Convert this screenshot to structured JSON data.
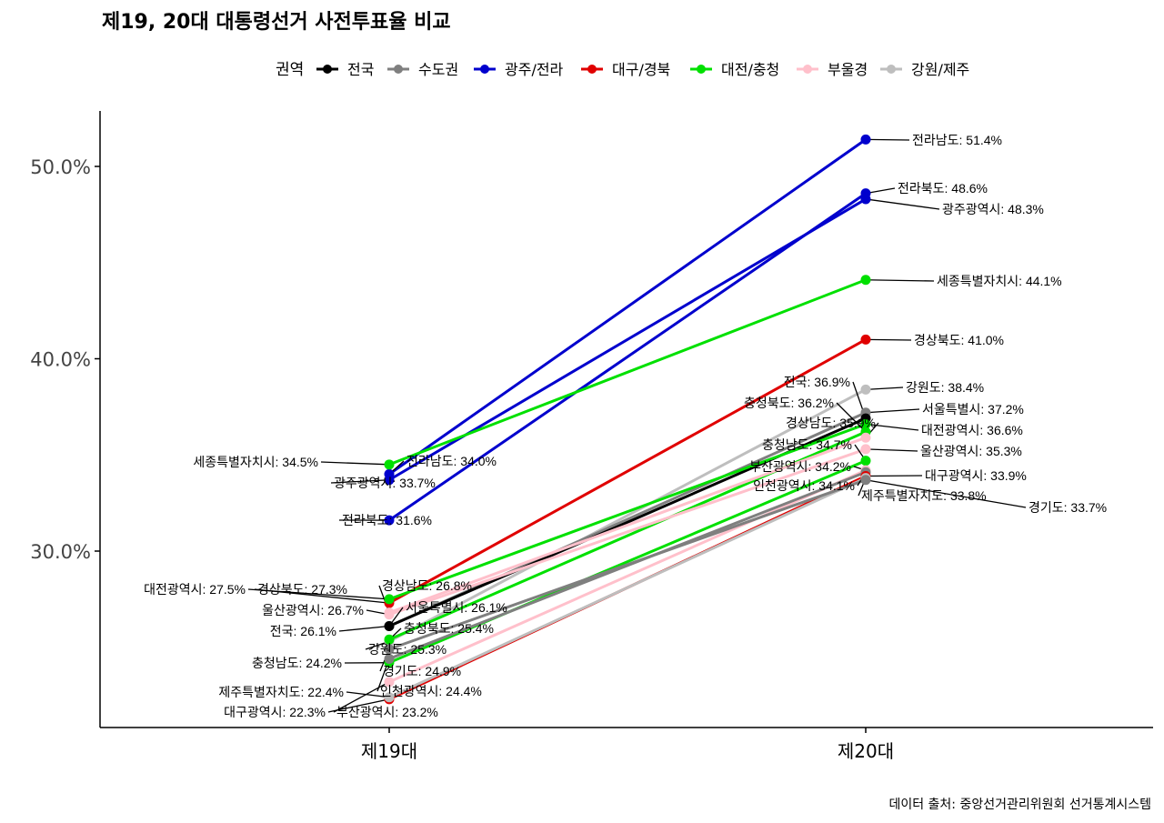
{
  "chart_data": {
    "type": "line",
    "title": "제19, 20대 대통령선거 사전투표율 비교",
    "caption": "데이터 출처: 중앙선거관리위원회 선거통계시스템",
    "categories": [
      "제19대",
      "제20대"
    ],
    "xlabel": "",
    "ylabel": "",
    "ylim": [
      21.0,
      53.0
    ],
    "y_ticks": [
      "30.0%",
      "40.0%",
      "50.0%"
    ],
    "y_tick_values": [
      30,
      40,
      50
    ],
    "grid": false,
    "legend": {
      "title": "권역",
      "position": "top",
      "entries": [
        {
          "name": "전국",
          "color": "#000000"
        },
        {
          "name": "수도권",
          "color": "#7f7f7f"
        },
        {
          "name": "광주/전라",
          "color": "#0000cd"
        },
        {
          "name": "대구/경북",
          "color": "#e00000"
        },
        {
          "name": "대전/충청",
          "color": "#00e000"
        },
        {
          "name": "부울경",
          "color": "#ffc0cb"
        },
        {
          "name": "강원/제주",
          "color": "#bebebe"
        }
      ]
    },
    "series": [
      {
        "region": "광주/전라",
        "left_label": "전라남도: 34.0%",
        "right_label": "전라남도: 51.4%",
        "values": [
          34.0,
          51.4
        ]
      },
      {
        "region": "광주/전라",
        "left_label": "전라북도: 31.6%",
        "right_label": "전라북도: 48.6%",
        "values": [
          31.6,
          48.6
        ]
      },
      {
        "region": "광주/전라",
        "left_label": "광주광역시: 33.7%",
        "right_label": "광주광역시: 48.3%",
        "values": [
          33.7,
          48.3
        ]
      },
      {
        "region": "대전/충청",
        "left_label": "세종특별자치시: 34.5%",
        "right_label": "세종특별자치시: 44.1%",
        "values": [
          34.5,
          44.1
        ]
      },
      {
        "region": "대구/경북",
        "left_label": "경상북도: 27.3%",
        "right_label": "경상북도: 41.0%",
        "values": [
          27.3,
          41.0
        ]
      },
      {
        "region": "강원/제주",
        "left_label": "강원도: 25.3%",
        "right_label": "강원도: 38.4%",
        "values": [
          25.3,
          38.4
        ]
      },
      {
        "region": "수도권",
        "left_label": "서울특별시: 26.1%",
        "right_label": "서울특별시: 37.2%",
        "values": [
          26.1,
          37.2
        ]
      },
      {
        "region": "전국",
        "left_label": "전국: 26.1%",
        "right_label": "전국: 36.9%",
        "values": [
          26.1,
          36.9
        ]
      },
      {
        "region": "대전/충청",
        "left_label": "대전광역시: 27.5%",
        "right_label": "대전광역시: 36.6%",
        "values": [
          27.5,
          36.6
        ]
      },
      {
        "region": "대전/충청",
        "left_label": "충청북도: 25.4%",
        "right_label": "충청북도: 36.2%",
        "values": [
          25.4,
          36.2
        ]
      },
      {
        "region": "부울경",
        "left_label": "경상남도: 26.8%",
        "right_label": "경상남도: 35.9%",
        "values": [
          26.8,
          35.9
        ]
      },
      {
        "region": "부울경",
        "left_label": "울산광역시: 26.7%",
        "right_label": "울산광역시: 35.3%",
        "values": [
          26.7,
          35.3
        ]
      },
      {
        "region": "대전/충청",
        "left_label": "충청남도: 24.2%",
        "right_label": "충청남도: 34.7%",
        "values": [
          24.2,
          34.7
        ]
      },
      {
        "region": "부울경",
        "left_label": "부산광역시: 23.2%",
        "right_label": "부산광역시: 34.2%",
        "values": [
          23.2,
          34.2
        ]
      },
      {
        "region": "수도권",
        "left_label": "인천광역시: 24.4%",
        "right_label": "인천광역시: 34.1%",
        "values": [
          24.4,
          34.1
        ]
      },
      {
        "region": "대구/경북",
        "left_label": "대구광역시: 22.3%",
        "right_label": "대구광역시: 33.9%",
        "values": [
          22.3,
          33.9
        ]
      },
      {
        "region": "강원/제주",
        "left_label": "제주특별자치도: 22.4%",
        "right_label": "제주특별자치도: 33.8%",
        "values": [
          22.4,
          33.8
        ]
      },
      {
        "region": "수도권",
        "left_label": "경기도: 24.9%",
        "right_label": "경기도: 33.7%",
        "values": [
          24.9,
          33.7
        ]
      }
    ]
  }
}
